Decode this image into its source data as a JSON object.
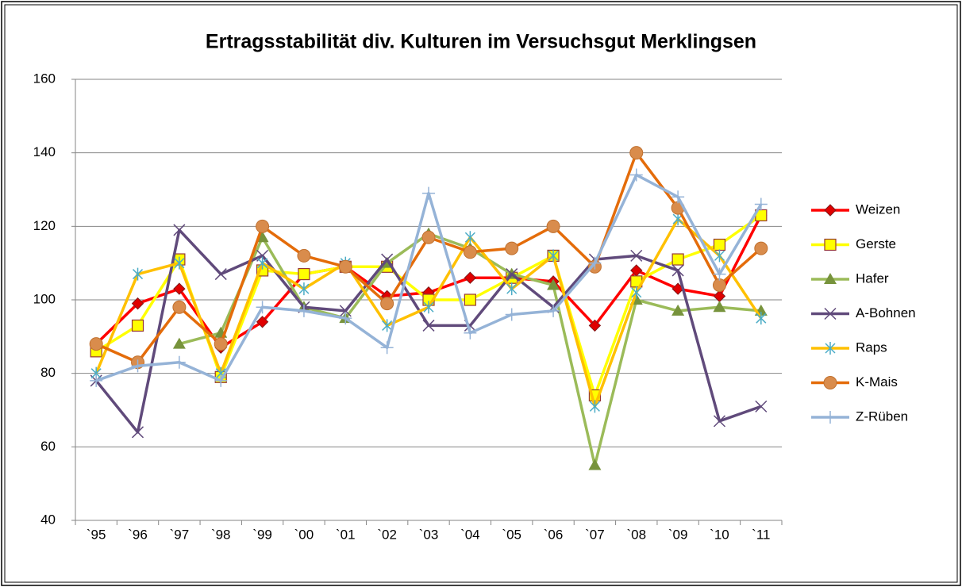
{
  "chart_data": {
    "type": "line",
    "title": "Ertragsstabilität div. Kulturen im Versuchsgut Merklingsen",
    "categories": [
      "`95",
      "`96",
      "`97",
      "`98",
      "`99",
      "`00",
      "`01",
      "`02",
      "`03",
      "`04",
      "`05",
      "`06",
      "`07",
      "`08",
      "`09",
      "`10",
      "`11"
    ],
    "series": [
      {
        "name": "Weizen",
        "color": "#ff0000",
        "marker": "diamond",
        "marker_color": "#e00000",
        "values": [
          88,
          99,
          103,
          87,
          94,
          107,
          109,
          101,
          102,
          106,
          106,
          105,
          93,
          108,
          103,
          101,
          123
        ]
      },
      {
        "name": "Gerste",
        "color": "#ffff00",
        "marker": "square",
        "marker_color": "#ffff00",
        "values": [
          86,
          93,
          111,
          79,
          108,
          107,
          109,
          109,
          100,
          100,
          106,
          112,
          74,
          105,
          111,
          115,
          123
        ]
      },
      {
        "name": "Hafer",
        "color": "#9bbb59",
        "marker": "triangle",
        "marker_color": "#77933c",
        "values": [
          null,
          null,
          88,
          91,
          117,
          98,
          95,
          110,
          118,
          114,
          107,
          104,
          55,
          100,
          97,
          98,
          97
        ]
      },
      {
        "name": "A-Bohnen",
        "color": "#604a7b",
        "marker": "x",
        "marker_color": "#604a7b",
        "values": [
          78,
          64,
          119,
          107,
          112,
          98,
          97,
          111,
          93,
          93,
          107,
          98,
          111,
          112,
          108,
          67,
          71
        ]
      },
      {
        "name": "Raps",
        "color": "#ffc000",
        "marker": "star",
        "marker_color": "#4bacc6",
        "values": [
          80,
          107,
          110,
          80,
          110,
          103,
          110,
          93,
          98,
          117,
          103,
          112,
          71,
          102,
          122,
          112,
          95
        ]
      },
      {
        "name": "K-Mais",
        "color": "#e46c0a",
        "marker": "circle",
        "marker_color": "#d98c4c",
        "values": [
          88,
          83,
          98,
          88,
          120,
          112,
          109,
          99,
          117,
          113,
          114,
          120,
          109,
          140,
          125,
          104,
          114
        ]
      },
      {
        "name": "Z-Rüben",
        "color": "#95b3d7",
        "marker": "plus",
        "marker_color": "#95b3d7",
        "values": [
          78,
          82,
          83,
          78,
          98,
          97,
          95,
          87,
          129,
          91,
          96,
          97,
          110,
          134,
          128,
          107,
          126
        ]
      }
    ],
    "ylim": [
      40,
      160
    ],
    "yticks": [
      40,
      60,
      80,
      100,
      120,
      140,
      160
    ],
    "grid": true,
    "legend": "right"
  }
}
